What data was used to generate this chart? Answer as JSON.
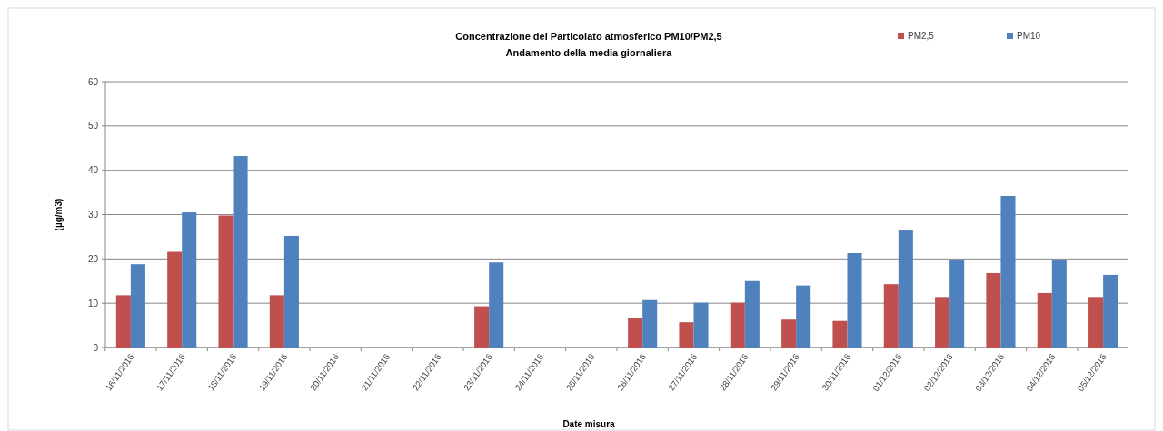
{
  "chart_data": {
    "type": "bar",
    "title": "Concentrazione del Particolato atmosferico PM10/PM2,5",
    "subtitle": "Andamento della media giornaliera",
    "xlabel": "Date misura",
    "ylabel": "(µg/m3)",
    "categories": [
      "16/11/2016",
      "17/11/2016",
      "18/11/2016",
      "19/11/2016",
      "20/11/2016",
      "21/11/2016",
      "22/11/2016",
      "23/11/2016",
      "24/11/2016",
      "25/11/2016",
      "26/11/2016",
      "27/11/2016",
      "28/11/2016",
      "29/11/2016",
      "30/11/2016",
      "01/12/2016",
      "02/12/2016",
      "03/12/2016",
      "04/12/2016",
      "05/12/2016"
    ],
    "series": [
      {
        "name": "PM2,5",
        "color": "#c0504d",
        "values": [
          11.8,
          21.6,
          29.8,
          11.8,
          null,
          null,
          null,
          9.3,
          null,
          null,
          6.7,
          5.7,
          10.1,
          6.3,
          6.0,
          14.3,
          11.4,
          16.8,
          12.3,
          11.4
        ]
      },
      {
        "name": "PM10",
        "color": "#4f81bd",
        "values": [
          18.8,
          30.5,
          43.2,
          25.2,
          null,
          null,
          null,
          19.2,
          null,
          null,
          10.7,
          10.1,
          15.0,
          14.0,
          21.3,
          26.4,
          19.9,
          34.2,
          19.9,
          16.4
        ]
      }
    ],
    "ylim": [
      0,
      60
    ],
    "yticks": [
      0,
      10,
      20,
      30,
      40,
      50,
      60
    ],
    "grid": "y",
    "legend": "top right"
  }
}
